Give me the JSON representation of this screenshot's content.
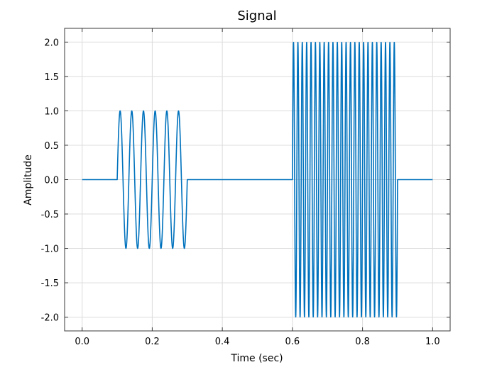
{
  "chart_data": {
    "type": "line",
    "title": "Signal",
    "xlabel": "Time (sec)",
    "ylabel": "Amplitude",
    "xlim": [
      -0.05,
      1.05
    ],
    "ylim": [
      -2.2,
      2.2
    ],
    "xticks": [
      0.0,
      0.2,
      0.4,
      0.6,
      0.8,
      1.0
    ],
    "xtick_labels": [
      "0.0",
      "0.2",
      "0.4",
      "0.6",
      "0.8",
      "1.0"
    ],
    "yticks": [
      2.0,
      1.5,
      1.0,
      0.5,
      0.0,
      -0.5,
      -1.0,
      -1.5,
      -2.0
    ],
    "ytick_labels": [
      "2.0",
      "1.5",
      "1.0",
      "0.5",
      "0.0",
      "-0.5",
      "-1.0",
      "-1.5",
      "-2.0"
    ],
    "grid": true,
    "series": [
      {
        "color": "#0072bd",
        "segments": [
          {
            "t_start": 0.0,
            "t_end": 0.1,
            "amplitude": 0,
            "frequency_hz": 0
          },
          {
            "t_start": 0.1,
            "t_end": 0.3,
            "amplitude": 1,
            "frequency_hz": 30
          },
          {
            "t_start": 0.3,
            "t_end": 0.6,
            "amplitude": 0,
            "frequency_hz": 0
          },
          {
            "t_start": 0.6,
            "t_end": 0.9,
            "amplitude": 2,
            "frequency_hz": 80
          },
          {
            "t_start": 0.9,
            "t_end": 1.0,
            "amplitude": 0,
            "frequency_hz": 0
          }
        ]
      }
    ]
  }
}
